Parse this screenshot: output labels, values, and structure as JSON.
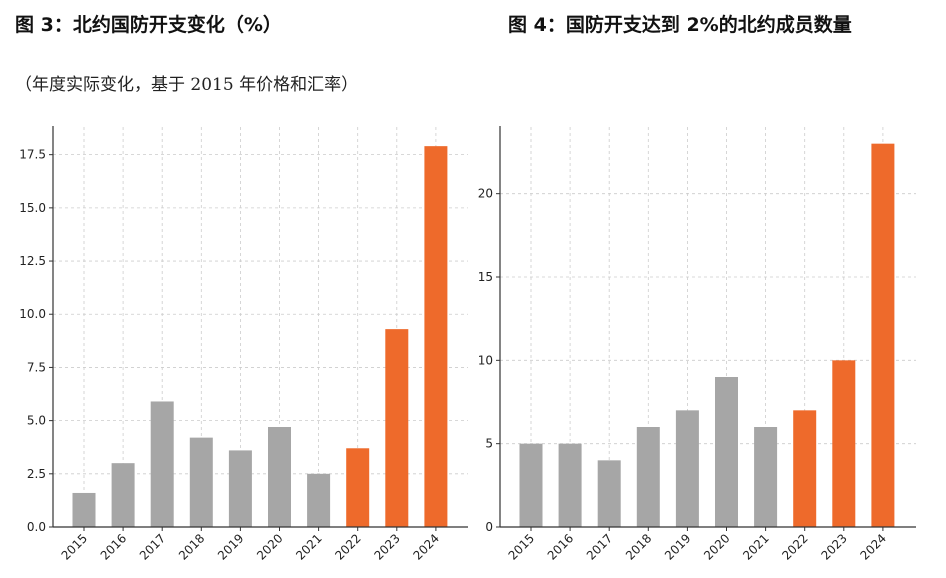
{
  "figures": {
    "left_title": "图 3：北约国防开支变化（%）",
    "left_subtitle": "（年度实际变化，基于 2015 年价格和汇率）",
    "right_title": "图 4：国防开支达到 2%的北约成员数量"
  },
  "colors": {
    "gray_bar": "#a6a6a6",
    "highlight_bar": "#ee6a2b"
  },
  "chart_data": [
    {
      "type": "bar",
      "title": "图 3：北约国防开支变化（%）",
      "subtitle": "（年度实际变化，基于 2015 年价格和汇率）",
      "xlabel": "",
      "ylabel": "",
      "categories": [
        "2015",
        "2016",
        "2017",
        "2018",
        "2019",
        "2020",
        "2021",
        "2022",
        "2023",
        "2024"
      ],
      "values": [
        1.6,
        3.0,
        5.9,
        4.2,
        3.6,
        4.7,
        2.5,
        3.7,
        9.3,
        17.9
      ],
      "highlight": [
        false,
        false,
        false,
        false,
        false,
        false,
        false,
        true,
        true,
        true
      ],
      "ylim": [
        0,
        18.8
      ],
      "yticks": [
        0,
        2.5,
        5.0,
        7.5,
        10.0,
        12.5,
        15.0,
        17.5
      ],
      "ytick_labels": [
        "0.0",
        "2.5",
        "5.0",
        "7.5",
        "10.0",
        "12.5",
        "15.0",
        "17.5"
      ],
      "grid": true,
      "legend": "none"
    },
    {
      "type": "bar",
      "title": "图 4：国防开支达到 2%的北约成员数量",
      "xlabel": "",
      "ylabel": "",
      "categories": [
        "2015",
        "2016",
        "2017",
        "2018",
        "2019",
        "2020",
        "2021",
        "2022",
        "2023",
        "2024"
      ],
      "values": [
        5,
        5,
        4,
        6,
        7,
        9,
        6,
        7,
        10,
        23
      ],
      "highlight": [
        false,
        false,
        false,
        false,
        false,
        false,
        false,
        true,
        true,
        true
      ],
      "ylim": [
        0,
        24
      ],
      "yticks": [
        0,
        5,
        10,
        15,
        20
      ],
      "ytick_labels": [
        "0",
        "5",
        "10",
        "15",
        "20"
      ],
      "grid": true,
      "legend": "none"
    }
  ]
}
